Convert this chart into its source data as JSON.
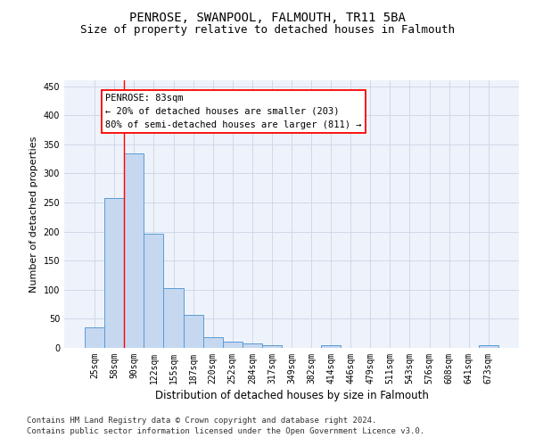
{
  "title": "PENROSE, SWANPOOL, FALMOUTH, TR11 5BA",
  "subtitle": "Size of property relative to detached houses in Falmouth",
  "xlabel": "Distribution of detached houses by size in Falmouth",
  "ylabel": "Number of detached properties",
  "categories": [
    "25sqm",
    "58sqm",
    "90sqm",
    "122sqm",
    "155sqm",
    "187sqm",
    "220sqm",
    "252sqm",
    "284sqm",
    "317sqm",
    "349sqm",
    "382sqm",
    "414sqm",
    "446sqm",
    "479sqm",
    "511sqm",
    "543sqm",
    "576sqm",
    "608sqm",
    "641sqm",
    "673sqm"
  ],
  "values": [
    35,
    257,
    335,
    197,
    103,
    57,
    18,
    11,
    8,
    5,
    0,
    0,
    4,
    0,
    0,
    0,
    0,
    0,
    0,
    0,
    4
  ],
  "bar_color": "#c5d8f0",
  "bar_edge_color": "#5b9bd5",
  "grid_color": "#d0d8e8",
  "background_color": "#eef3fb",
  "annotation_box_text": "PENROSE: 83sqm\n← 20% of detached houses are smaller (203)\n80% of semi-detached houses are larger (811) →",
  "vline_x": 1.5,
  "ylim": [
    0,
    460
  ],
  "yticks": [
    0,
    50,
    100,
    150,
    200,
    250,
    300,
    350,
    400,
    450
  ],
  "footer": "Contains HM Land Registry data © Crown copyright and database right 2024.\nContains public sector information licensed under the Open Government Licence v3.0.",
  "title_fontsize": 10,
  "subtitle_fontsize": 9,
  "xlabel_fontsize": 8.5,
  "ylabel_fontsize": 8,
  "tick_fontsize": 7,
  "annot_fontsize": 7.5,
  "footer_fontsize": 6.5
}
